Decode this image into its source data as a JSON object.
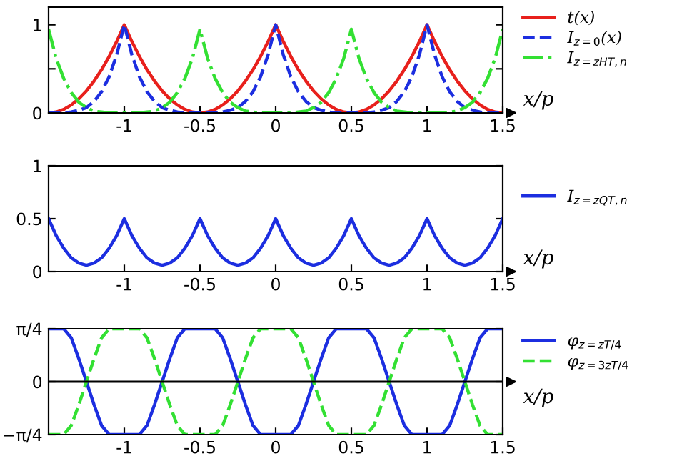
{
  "chart_data": [
    {
      "type": "line",
      "xlabel": "x/p",
      "legend": "right",
      "grid": false,
      "x": [
        -1.5,
        -1.45,
        -1.4,
        -1.35,
        -1.3,
        -1.25,
        -1.2,
        -1.15,
        -1.1,
        -1.05,
        -1.0,
        -0.95,
        -0.9,
        -0.85,
        -0.8,
        -0.75,
        -0.7,
        -0.65,
        -0.6,
        -0.55,
        -0.5,
        -0.45,
        -0.4,
        -0.35,
        -0.3,
        -0.25,
        -0.2,
        -0.15,
        -0.1,
        -0.05,
        0,
        0.05,
        0.1,
        0.15,
        0.2,
        0.25,
        0.3,
        0.35,
        0.4,
        0.45,
        0.5,
        0.55,
        0.6,
        0.65,
        0.7,
        0.75,
        0.8,
        0.85,
        0.9,
        0.95,
        1.0,
        1.05,
        1.1,
        1.15,
        1.2,
        1.25,
        1.3,
        1.35,
        1.4,
        1.45,
        1.5
      ],
      "xlim": [
        -1.5,
        1.5
      ],
      "xticks": [
        -1,
        -0.5,
        0,
        0.5,
        1,
        1.5
      ],
      "ylim": [
        0,
        1.2
      ],
      "yticks": [
        0,
        {
          "value": 0.5,
          "label": null
        },
        1
      ],
      "series": [
        {
          "name": "t(x)",
          "color": "#e8201c",
          "line_style": "solid",
          "values": [
            0,
            0.01,
            0.04,
            0.09,
            0.16,
            0.25,
            0.36,
            0.49,
            0.64,
            0.81,
            1,
            0.81,
            0.64,
            0.49,
            0.36,
            0.25,
            0.16,
            0.09,
            0.04,
            0.01,
            0,
            0.01,
            0.04,
            0.09,
            0.16,
            0.25,
            0.36,
            0.49,
            0.64,
            0.81,
            1,
            0.81,
            0.64,
            0.49,
            0.36,
            0.25,
            0.16,
            0.09,
            0.04,
            0.01,
            0,
            0.01,
            0.04,
            0.09,
            0.16,
            0.25,
            0.36,
            0.49,
            0.64,
            0.81,
            1,
            0.81,
            0.64,
            0.49,
            0.36,
            0.25,
            0.16,
            0.09,
            0.04,
            0.01,
            0
          ]
        },
        {
          "name": "I$_{z=0}$(x)",
          "color": "#1c2ee0",
          "line_style": "dashed",
          "values": [
            0,
            0,
            0,
            0.01,
            0.03,
            0.06,
            0.13,
            0.24,
            0.41,
            0.66,
            1,
            0.66,
            0.41,
            0.24,
            0.13,
            0.06,
            0.03,
            0.01,
            0,
            0,
            0,
            0,
            0,
            0.01,
            0.03,
            0.06,
            0.13,
            0.24,
            0.41,
            0.66,
            1,
            0.66,
            0.41,
            0.24,
            0.13,
            0.06,
            0.03,
            0.01,
            0,
            0,
            0,
            0,
            0,
            0.01,
            0.03,
            0.06,
            0.13,
            0.24,
            0.41,
            0.66,
            1,
            0.66,
            0.41,
            0.24,
            0.13,
            0.06,
            0.03,
            0.01,
            0,
            0,
            0
          ]
        },
        {
          "name": "I$_{z=zHT,n}$",
          "color": "#33e033",
          "line_style": "dashdot",
          "values": [
            0.95,
            0.62,
            0.39,
            0.23,
            0.12,
            0.06,
            0.02,
            0.01,
            0,
            0,
            0,
            0,
            0,
            0.01,
            0.02,
            0.06,
            0.12,
            0.23,
            0.39,
            0.62,
            0.95,
            0.62,
            0.39,
            0.23,
            0.12,
            0.06,
            0.02,
            0.01,
            0,
            0,
            0,
            0,
            0,
            0.01,
            0.02,
            0.06,
            0.12,
            0.23,
            0.39,
            0.62,
            0.95,
            0.62,
            0.39,
            0.23,
            0.12,
            0.06,
            0.02,
            0.01,
            0,
            0,
            0,
            0,
            0,
            0.01,
            0.02,
            0.06,
            0.12,
            0.23,
            0.39,
            0.62,
            0.95
          ]
        }
      ]
    },
    {
      "type": "line",
      "xlabel": "x/p",
      "legend": "right",
      "grid": false,
      "x": [
        -1.5,
        -1.45,
        -1.4,
        -1.35,
        -1.3,
        -1.25,
        -1.2,
        -1.15,
        -1.1,
        -1.05,
        -1.0,
        -0.95,
        -0.9,
        -0.85,
        -0.8,
        -0.75,
        -0.7,
        -0.65,
        -0.6,
        -0.55,
        -0.5,
        -0.45,
        -0.4,
        -0.35,
        -0.3,
        -0.25,
        -0.2,
        -0.15,
        -0.1,
        -0.05,
        0,
        0.05,
        0.1,
        0.15,
        0.2,
        0.25,
        0.3,
        0.35,
        0.4,
        0.45,
        0.5,
        0.55,
        0.6,
        0.65,
        0.7,
        0.75,
        0.8,
        0.85,
        0.9,
        0.95,
        1.0,
        1.05,
        1.1,
        1.15,
        1.2,
        1.25,
        1.3,
        1.35,
        1.4,
        1.45,
        1.5
      ],
      "xlim": [
        -1.5,
        1.5
      ],
      "xticks": [
        -1,
        -0.5,
        0,
        0.5,
        1,
        1.5
      ],
      "ylim": [
        0,
        1
      ],
      "yticks": [
        0,
        0.5,
        1
      ],
      "series": [
        {
          "name": "I$_{z=zQT,n}$",
          "color": "#1c2ee0",
          "line_style": "solid",
          "values": [
            0.5,
            0.34,
            0.22,
            0.13,
            0.08,
            0.06,
            0.08,
            0.13,
            0.22,
            0.34,
            0.5,
            0.34,
            0.22,
            0.13,
            0.08,
            0.06,
            0.08,
            0.13,
            0.22,
            0.34,
            0.5,
            0.34,
            0.22,
            0.13,
            0.08,
            0.06,
            0.08,
            0.13,
            0.22,
            0.34,
            0.5,
            0.34,
            0.22,
            0.13,
            0.08,
            0.06,
            0.08,
            0.13,
            0.22,
            0.34,
            0.5,
            0.34,
            0.22,
            0.13,
            0.08,
            0.06,
            0.08,
            0.13,
            0.22,
            0.34,
            0.5,
            0.34,
            0.22,
            0.13,
            0.08,
            0.06,
            0.08,
            0.13,
            0.22,
            0.34,
            0.5
          ]
        }
      ]
    },
    {
      "type": "line",
      "xlabel": "x/p",
      "legend": "right",
      "grid": false,
      "x": [
        -1.5,
        -1.45,
        -1.4,
        -1.35,
        -1.3,
        -1.25,
        -1.2,
        -1.15,
        -1.1,
        -1.05,
        -1.0,
        -0.95,
        -0.9,
        -0.85,
        -0.8,
        -0.75,
        -0.7,
        -0.65,
        -0.6,
        -0.55,
        -0.5,
        -0.45,
        -0.4,
        -0.35,
        -0.3,
        -0.25,
        -0.2,
        -0.15,
        -0.1,
        -0.05,
        0,
        0.05,
        0.1,
        0.15,
        0.2,
        0.25,
        0.3,
        0.35,
        0.4,
        0.45,
        0.5,
        0.55,
        0.6,
        0.65,
        0.7,
        0.75,
        0.8,
        0.85,
        0.9,
        0.95,
        1.0,
        1.05,
        1.1,
        1.15,
        1.2,
        1.25,
        1.3,
        1.35,
        1.4,
        1.45,
        1.5
      ],
      "xlim": [
        -1.5,
        1.5
      ],
      "xticks": [
        -1,
        -0.5,
        0,
        0.5,
        1,
        1.5
      ],
      "ylim": [
        -0.785,
        0.785
      ],
      "yticks": [
        {
          "value": -0.785,
          "label": "−π/4"
        },
        0,
        {
          "value": 0.785,
          "label": "π/4"
        }
      ],
      "ref_lines": [
        {
          "axis": "y",
          "value": 0,
          "color": "#000000"
        }
      ],
      "series": [
        {
          "name": "φ$_{z=zT/4}$",
          "color": "#1c2ee0",
          "line_style": "solid",
          "values": [
            0.785,
            0.785,
            0.785,
            0.65,
            0.34,
            0,
            -0.34,
            -0.65,
            -0.785,
            -0.785,
            -0.785,
            -0.785,
            -0.785,
            -0.65,
            -0.34,
            0,
            0.34,
            0.65,
            0.785,
            0.785,
            0.785,
            0.785,
            0.785,
            0.65,
            0.34,
            0,
            -0.34,
            -0.65,
            -0.785,
            -0.785,
            -0.785,
            -0.785,
            -0.785,
            -0.65,
            -0.34,
            0,
            0.34,
            0.65,
            0.785,
            0.785,
            0.785,
            0.785,
            0.785,
            0.65,
            0.34,
            0,
            -0.34,
            -0.65,
            -0.785,
            -0.785,
            -0.785,
            -0.785,
            -0.785,
            -0.65,
            -0.34,
            0,
            0.34,
            0.65,
            0.785,
            0.785,
            0.785
          ]
        },
        {
          "name": "φ$_{z=3zT/4}$",
          "color": "#33e033",
          "line_style": "dashed",
          "values": [
            -0.785,
            -0.785,
            -0.785,
            -0.65,
            -0.34,
            0,
            0.34,
            0.65,
            0.785,
            0.785,
            0.785,
            0.785,
            0.785,
            0.65,
            0.34,
            0,
            -0.34,
            -0.65,
            -0.785,
            -0.785,
            -0.785,
            -0.785,
            -0.785,
            -0.65,
            -0.34,
            0,
            0.34,
            0.65,
            0.785,
            0.785,
            0.785,
            0.785,
            0.785,
            0.65,
            0.34,
            0,
            -0.34,
            -0.65,
            -0.785,
            -0.785,
            -0.785,
            -0.785,
            -0.785,
            -0.65,
            -0.34,
            0,
            0.34,
            0.65,
            0.785,
            0.785,
            0.785,
            0.785,
            0.785,
            0.65,
            0.34,
            0,
            -0.34,
            -0.65,
            -0.785,
            -0.785,
            -0.785
          ]
        }
      ]
    }
  ]
}
